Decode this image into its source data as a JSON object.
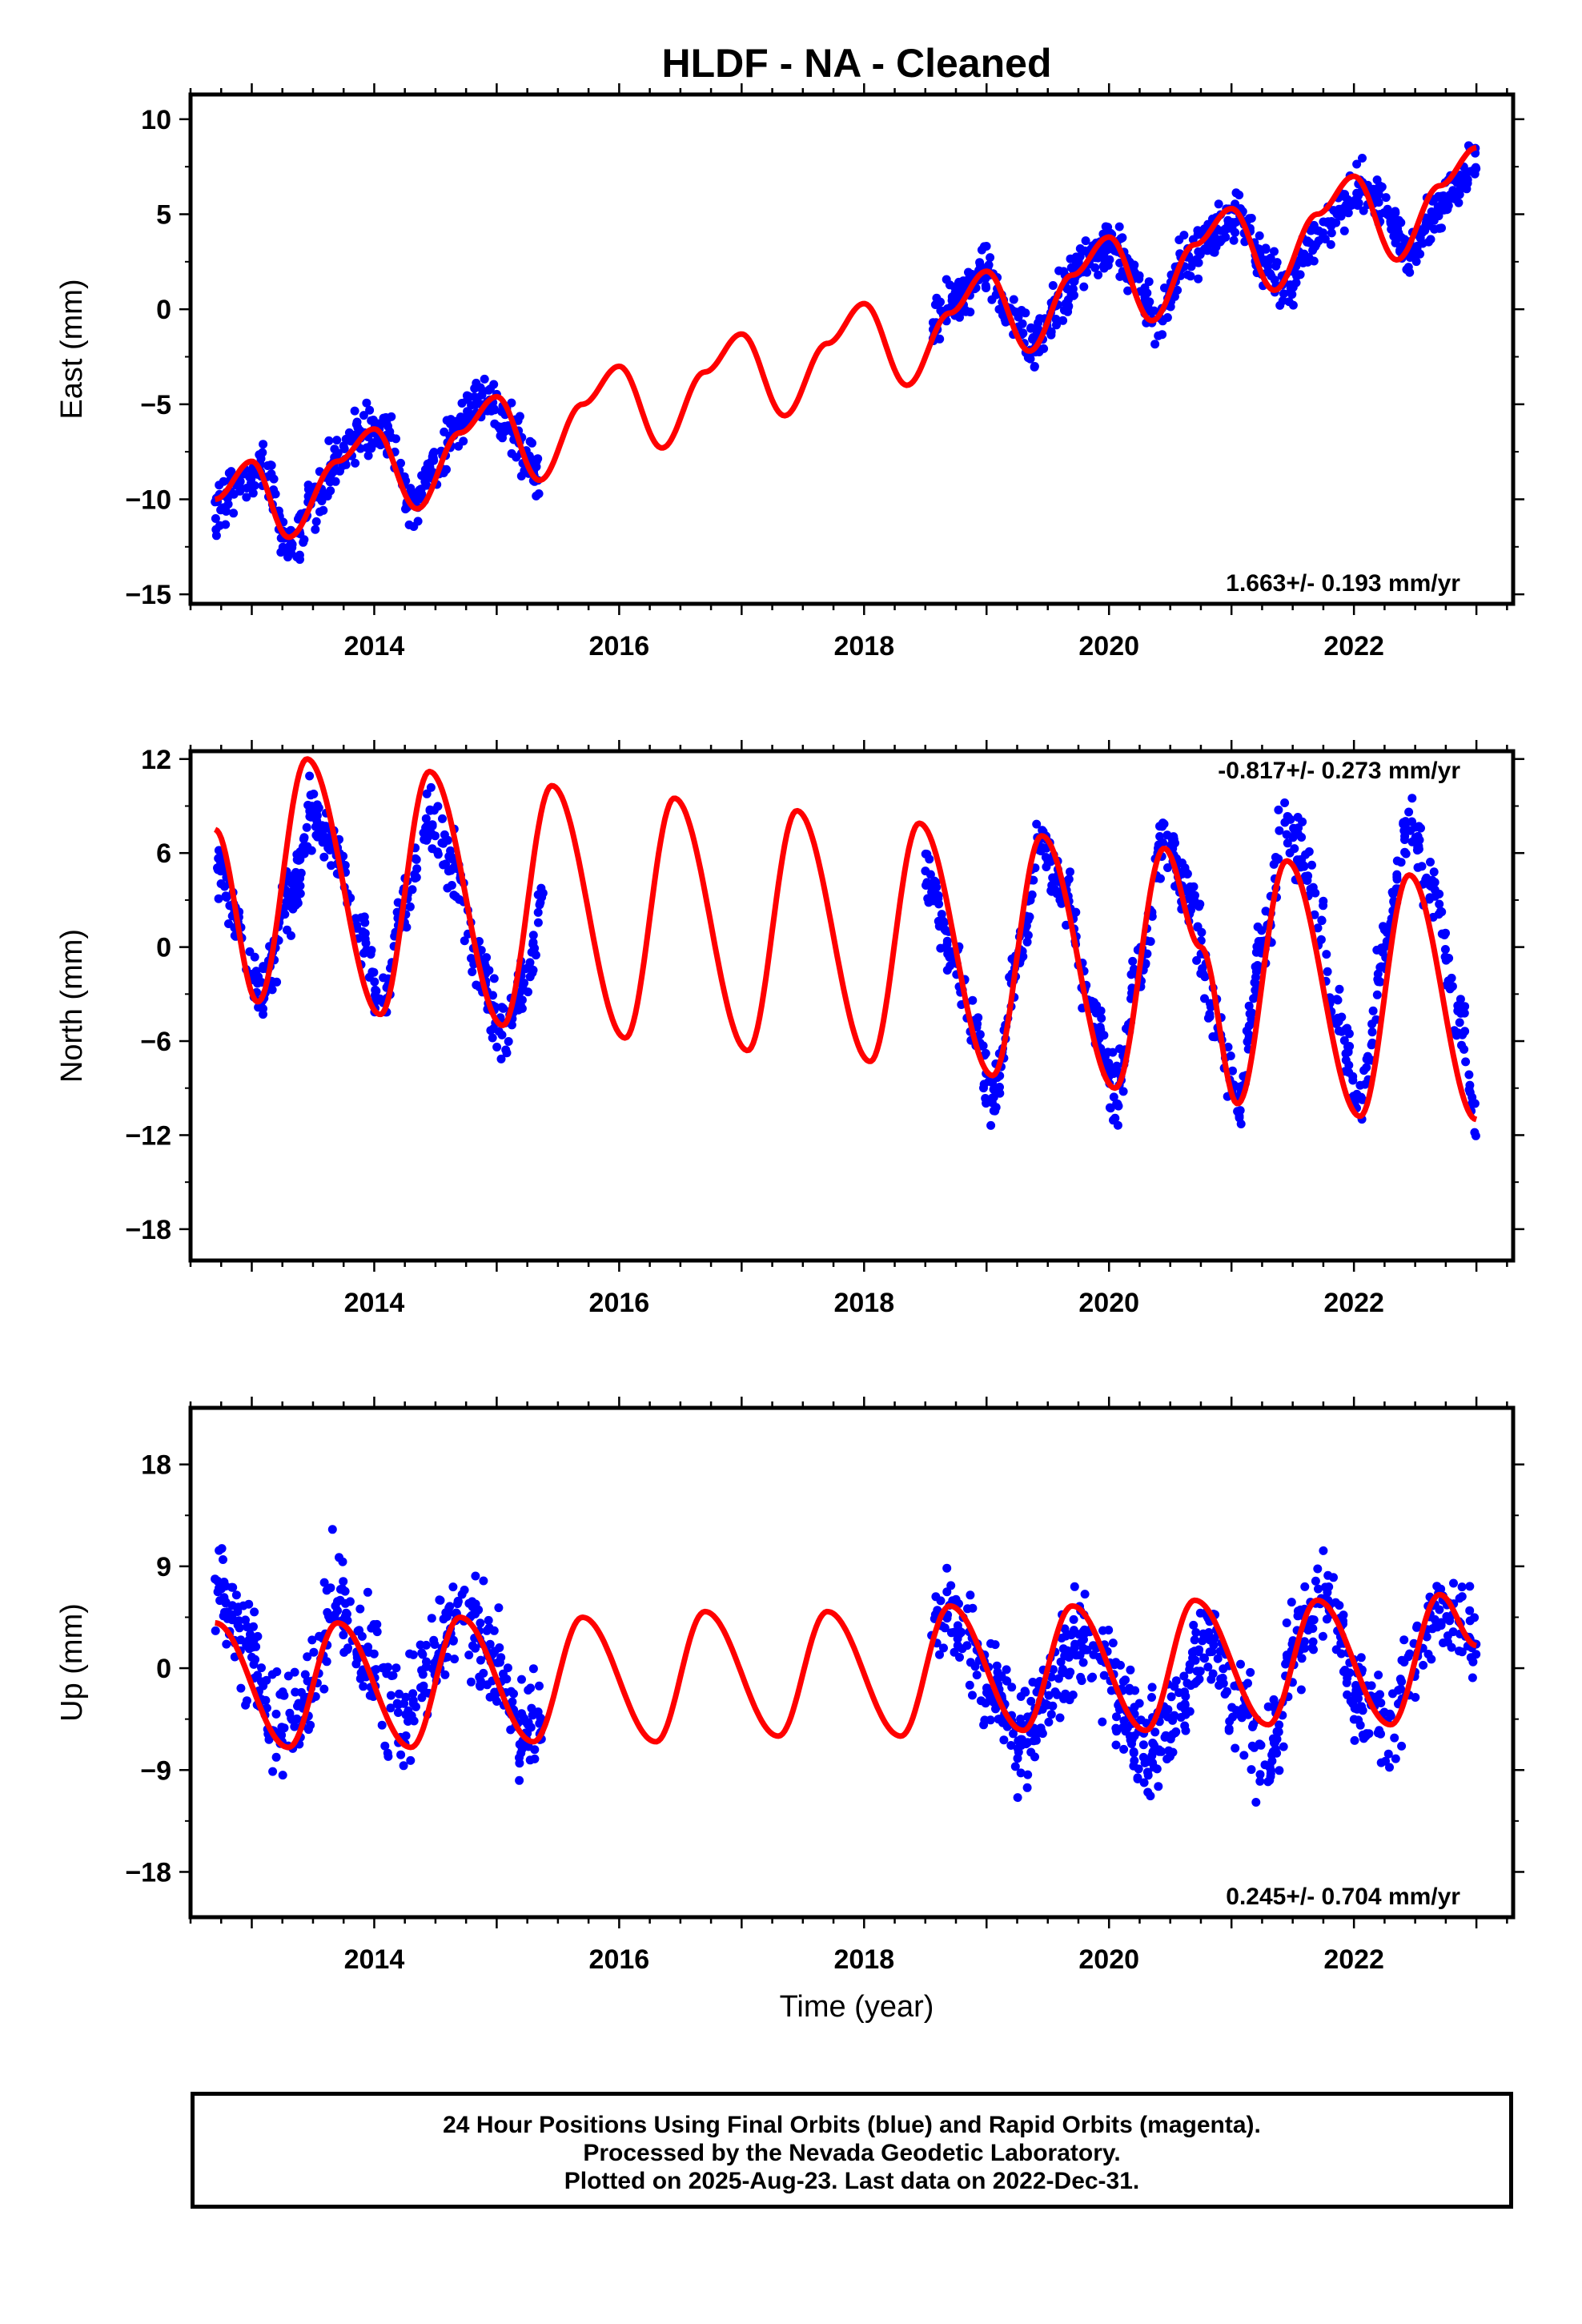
{
  "title": "HLDF  - NA - Cleaned",
  "xlabel": "Time (year)",
  "footer": {
    "line1": "24 Hour Positions Using Final Orbits (blue) and Rapid Orbits (magenta).",
    "line2": "Processed by the Nevada Geodetic Laboratory.",
    "line3": "Plotted on 2025-Aug-23. Last data on 2022-Dec-31."
  },
  "colors": {
    "data": "#0000ff",
    "model": "#ff0000",
    "frame": "#000000"
  },
  "chart_data": [
    {
      "type": "scatter",
      "ylabel": "East (mm)",
      "rate_label": "1.663+/- 0.193 mm/yr",
      "rate_position": "bottom-right",
      "xlim": [
        2012.5,
        2023.3
      ],
      "ylim": [
        -15.5,
        11.3
      ],
      "xticks": [
        2014,
        2016,
        2018,
        2020,
        2022
      ],
      "xtick_labels": [
        "2014",
        "2016",
        "2018",
        "2020",
        "2022"
      ],
      "yticks": [
        -15,
        -10,
        -5,
        0,
        5,
        10
      ],
      "ytick_labels": [
        "−15",
        "−10",
        "−5",
        "0",
        "5",
        "10"
      ],
      "series": [
        {
          "kind": "points",
          "color": "#0000ff",
          "segments": [
            {
              "x": [
                2012.7,
                2012.9,
                2013.1,
                2013.3,
                2013.5,
                2013.7,
                2013.9,
                2014.1,
                2014.3,
                2014.5,
                2014.7,
                2014.9,
                2015.1,
                2015.35
              ],
              "y": [
                -10.5,
                -9.0,
                -8.5,
                -12.5,
                -10.5,
                -8.0,
                -6.5,
                -6.5,
                -10.0,
                -8.5,
                -5.5,
                -4.5,
                -6.0,
                -9.0
              ],
              "spread": 1.6
            },
            {
              "x": [
                2018.55,
                2018.75,
                2019.0,
                2019.2,
                2019.4,
                2019.6,
                2019.8,
                2020.0,
                2020.2,
                2020.4,
                2020.6,
                2020.9,
                2021.05,
                2021.25,
                2021.45,
                2021.65,
                2021.85,
                2022.05,
                2022.25,
                2022.45,
                2022.65,
                2022.85,
                2023.0
              ],
              "y": [
                -1.0,
                0.5,
                2.0,
                -0.5,
                -2.0,
                0.5,
                2.5,
                3.5,
                2.0,
                -1.0,
                2.5,
                4.0,
                5.0,
                2.5,
                1.0,
                3.5,
                5.0,
                6.5,
                5.5,
                3.0,
                5.0,
                6.5,
                8.0
              ],
              "spread": 1.5
            }
          ]
        },
        {
          "kind": "line",
          "color": "#ff0000",
          "x": [
            2012.7,
            2013.0,
            2013.3,
            2013.7,
            2014.0,
            2014.35,
            2014.7,
            2015.0,
            2015.35,
            2015.7,
            2016.0,
            2016.35,
            2016.7,
            2017.0,
            2017.35,
            2017.7,
            2018.0,
            2018.35,
            2018.7,
            2019.0,
            2019.35,
            2019.7,
            2020.0,
            2020.35,
            2020.7,
            2021.0,
            2021.35,
            2021.7,
            2022.0,
            2022.35,
            2022.7,
            2023.0
          ],
          "y": [
            -10.0,
            -8.0,
            -12.0,
            -8.0,
            -6.3,
            -10.5,
            -6.5,
            -4.6,
            -9.0,
            -5.0,
            -3.0,
            -7.3,
            -3.3,
            -1.3,
            -5.6,
            -1.8,
            0.3,
            -4.0,
            -0.2,
            2.0,
            -2.2,
            1.8,
            3.8,
            -0.6,
            3.4,
            5.3,
            1.0,
            5.0,
            7.0,
            2.6,
            6.5,
            8.5
          ]
        }
      ]
    },
    {
      "type": "scatter",
      "ylabel": "North (mm)",
      "rate_label": "-0.817+/- 0.273 mm/yr",
      "rate_position": "top-right",
      "xlim": [
        2012.5,
        2023.3
      ],
      "ylim": [
        -20.0,
        12.5
      ],
      "xticks": [
        2014,
        2016,
        2018,
        2020,
        2022
      ],
      "xtick_labels": [
        "2014",
        "2016",
        "2018",
        "2020",
        "2022"
      ],
      "yticks": [
        -18,
        -12,
        -6,
        0,
        6,
        12
      ],
      "ytick_labels": [
        "−18",
        "−12",
        "−6",
        "0",
        "6",
        "12"
      ],
      "series": [
        {
          "kind": "points",
          "color": "#0000ff",
          "segments": [
            {
              "x": [
                2012.7,
                2012.9,
                2013.1,
                2013.3,
                2013.5,
                2013.7,
                2013.9,
                2014.05,
                2014.25,
                2014.45,
                2014.65,
                2014.85,
                2015.05,
                2015.25,
                2015.38
              ],
              "y": [
                5.5,
                1.0,
                -3.0,
                3.0,
                8.5,
                6.0,
                0.5,
                -3.5,
                3.0,
                8.0,
                5.0,
                -1.0,
                -5.5,
                -2.0,
                3.0
              ],
              "spread": 2.2
            },
            {
              "x": [
                2018.5,
                2018.7,
                2018.9,
                2019.05,
                2019.25,
                2019.45,
                2019.65,
                2019.85,
                2020.05,
                2020.25,
                2020.45,
                2020.65,
                2020.85,
                2021.05,
                2021.25,
                2021.45,
                2021.65,
                2021.85,
                2022.05,
                2022.25,
                2022.45,
                2022.65,
                2022.85,
                2023.0
              ],
              "y": [
                5.0,
                0.0,
                -5.0,
                -10.0,
                -1.0,
                7.0,
                3.0,
                -4.0,
                -9.0,
                -1.0,
                7.0,
                3.0,
                -4.0,
                -9.5,
                0.0,
                8.0,
                4.0,
                -4.0,
                -10.0,
                0.0,
                8.0,
                3.5,
                -4.0,
                -11.0
              ],
              "spread": 2.4
            }
          ]
        },
        {
          "kind": "line",
          "color": "#ff0000",
          "x": [
            2012.7,
            2013.05,
            2013.45,
            2014.05,
            2014.45,
            2015.05,
            2015.45,
            2016.05,
            2016.45,
            2017.05,
            2017.45,
            2018.05,
            2018.45,
            2019.05,
            2019.45,
            2020.05,
            2020.45,
            2020.75,
            2021.05,
            2021.45,
            2022.05,
            2022.45,
            2023.0
          ],
          "y": [
            7.5,
            -3.5,
            12.0,
            -4.3,
            11.2,
            -5.0,
            10.3,
            -5.8,
            9.5,
            -6.6,
            8.7,
            -7.3,
            7.9,
            -8.2,
            7.1,
            -9.0,
            6.3,
            0.0,
            -10.0,
            5.5,
            -10.8,
            4.6,
            -11.0
          ]
        }
      ]
    },
    {
      "type": "scatter",
      "ylabel": "Up (mm)",
      "rate_label": "0.245+/- 0.704 mm/yr",
      "rate_position": "bottom-right",
      "xlim": [
        2012.5,
        2023.3
      ],
      "ylim": [
        -22.0,
        23.0
      ],
      "xticks": [
        2014,
        2016,
        2018,
        2020,
        2022
      ],
      "xtick_labels": [
        "2014",
        "2016",
        "2018",
        "2020",
        "2022"
      ],
      "yticks": [
        -18,
        -9,
        0,
        9,
        18
      ],
      "ytick_labels": [
        "−18",
        "−9",
        "0",
        "9",
        "18"
      ],
      "series": [
        {
          "kind": "points",
          "color": "#0000ff",
          "segments": [
            {
              "x": [
                2012.7,
                2012.95,
                2013.2,
                2013.45,
                2013.7,
                2013.95,
                2014.2,
                2014.45,
                2014.7,
                2014.95,
                2015.2,
                2015.38
              ],
              "y": [
                8.0,
                2.0,
                -6.0,
                -3.0,
                6.0,
                1.0,
                -5.0,
                0.0,
                5.0,
                1.0,
                -5.0,
                -4.0
              ],
              "spread": 5.5
            },
            {
              "x": [
                2018.55,
                2018.8,
                2019.05,
                2019.3,
                2019.55,
                2019.8,
                2020.05,
                2020.3,
                2020.55,
                2020.8,
                2021.05,
                2021.3,
                2021.55,
                2021.8,
                2022.05,
                2022.3,
                2022.55,
                2022.8,
                2023.0
              ],
              "y": [
                5.0,
                4.0,
                -2.0,
                -6.0,
                -1.0,
                3.0,
                -2.0,
                -7.0,
                -4.0,
                3.0,
                -3.0,
                -8.0,
                3.0,
                6.0,
                -3.0,
                -5.0,
                3.0,
                5.0,
                2.0
              ],
              "spread": 5.0
            }
          ]
        },
        {
          "kind": "line",
          "color": "#ff0000",
          "x": [
            2012.7,
            2013.3,
            2013.7,
            2014.3,
            2014.7,
            2015.3,
            2015.7,
            2016.3,
            2016.7,
            2017.3,
            2017.7,
            2018.3,
            2018.7,
            2019.3,
            2019.7,
            2020.3,
            2020.7,
            2021.3,
            2021.7,
            2022.3,
            2022.7,
            2023.0
          ],
          "y": [
            4.0,
            -7.0,
            4.0,
            -7.0,
            4.5,
            -6.5,
            4.5,
            -6.5,
            5.0,
            -6.0,
            5.0,
            -6.0,
            5.5,
            -5.5,
            5.5,
            -5.5,
            6.0,
            -5.0,
            6.0,
            -5.0,
            6.5,
            2.0
          ]
        }
      ]
    }
  ]
}
